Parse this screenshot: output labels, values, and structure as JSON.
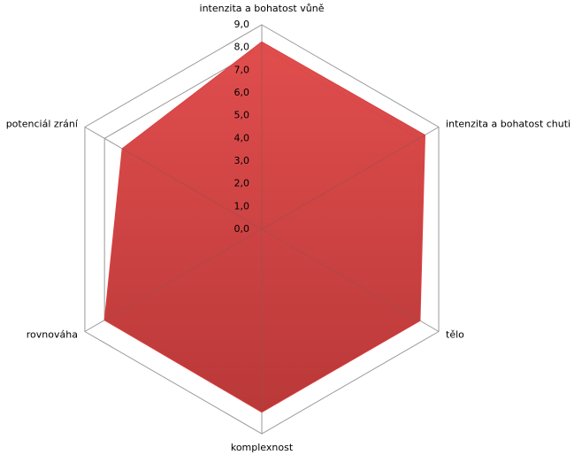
{
  "chart_data": {
    "type": "radar",
    "categories": [
      "intenzita a bohatost vůně",
      "intenzita a bohatost chuti",
      "tělo",
      "komplexnost",
      "rovnováha",
      "potenciál zrání"
    ],
    "values": [
      8.25,
      8.3,
      8.05,
      8.05,
      8.0,
      7.1
    ],
    "color": "#d94141",
    "ylim": [
      0,
      9
    ],
    "yticks": [
      {
        "value": 0,
        "label": "0,0"
      },
      {
        "value": 1,
        "label": "1,0"
      },
      {
        "value": 2,
        "label": "2,0"
      },
      {
        "value": 3,
        "label": "3,0"
      },
      {
        "value": 4,
        "label": "4,0"
      },
      {
        "value": 5,
        "label": "5,0"
      },
      {
        "value": 6,
        "label": "6,0"
      },
      {
        "value": 7,
        "label": "7,0"
      },
      {
        "value": 8,
        "label": "8,0"
      },
      {
        "value": 9,
        "label": "9,0"
      }
    ],
    "grid": true
  }
}
